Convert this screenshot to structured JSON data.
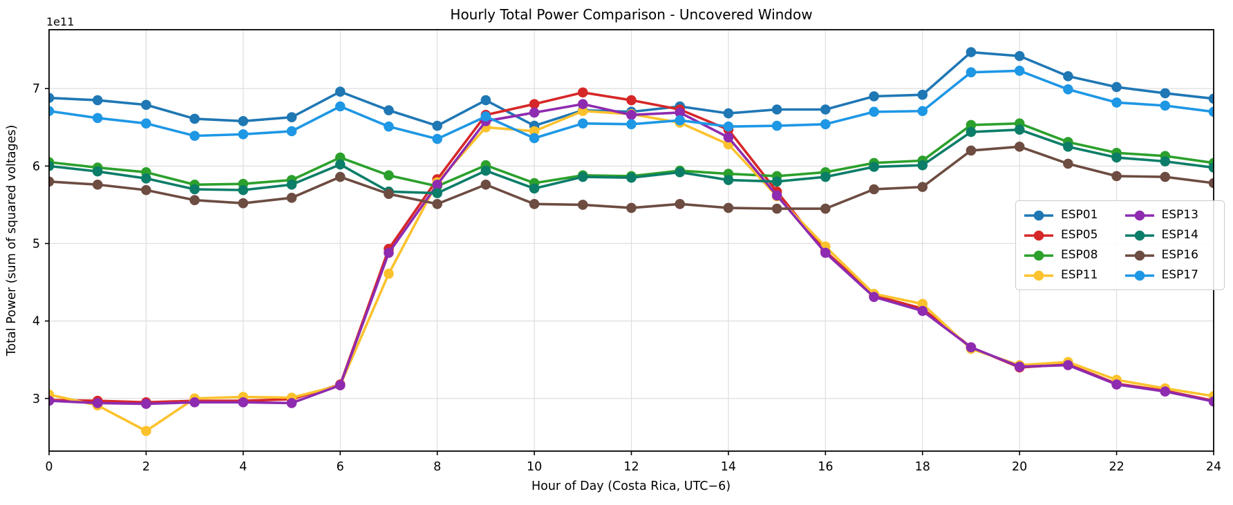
{
  "chart_data": {
    "type": "line",
    "title": "Hourly Total Power Comparison - Uncovered Window",
    "xlabel": "Hour of Day (Costa Rica, UTC−6)",
    "ylabel": "Total Power (sum of squared voltages)",
    "y_offset_label": "1e11",
    "y_unit_multiplier": "1e11",
    "x": [
      0,
      1,
      2,
      3,
      4,
      5,
      6,
      7,
      8,
      9,
      10,
      11,
      12,
      13,
      14,
      15,
      16,
      17,
      18,
      19,
      20,
      21,
      22,
      23,
      24
    ],
    "x_ticks": [
      0,
      2,
      4,
      6,
      8,
      10,
      12,
      14,
      16,
      18,
      20,
      22,
      24
    ],
    "y_ticks": [
      3,
      4,
      5,
      6,
      7
    ],
    "xlim": [
      0,
      24
    ],
    "ylim": [
      2.32,
      7.76
    ],
    "grid": true,
    "legend_position": "center right",
    "legend_columns": 2,
    "series": [
      {
        "name": "ESP01",
        "color": "#1f77b4",
        "values": [
          6.88,
          6.85,
          6.79,
          6.61,
          6.58,
          6.63,
          6.96,
          6.72,
          6.52,
          6.85,
          6.52,
          6.72,
          6.7,
          6.77,
          6.68,
          6.73,
          6.73,
          6.9,
          6.92,
          7.47,
          7.42,
          7.16,
          7.02,
          6.94,
          6.87
        ]
      },
      {
        "name": "ESP05",
        "color": "#d62728",
        "values": [
          2.98,
          2.97,
          2.95,
          2.97,
          2.97,
          2.99,
          3.18,
          4.93,
          5.83,
          6.66,
          6.8,
          6.95,
          6.85,
          6.73,
          6.47,
          5.67,
          4.9,
          4.33,
          4.16,
          3.66,
          3.4,
          3.44,
          3.19,
          3.1,
          2.97
        ]
      },
      {
        "name": "ESP08",
        "color": "#2ca02c",
        "values": [
          6.05,
          5.98,
          5.92,
          5.76,
          5.77,
          5.82,
          6.11,
          5.88,
          5.74,
          6.01,
          5.78,
          5.88,
          5.87,
          5.94,
          5.9,
          5.87,
          5.92,
          6.04,
          6.07,
          6.53,
          6.55,
          6.31,
          6.17,
          6.13,
          6.04
        ]
      },
      {
        "name": "ESP11",
        "color": "#fcc22d",
        "values": [
          3.05,
          2.91,
          2.58,
          3.0,
          3.02,
          3.01,
          3.17,
          4.61,
          5.79,
          6.5,
          6.45,
          6.71,
          6.67,
          6.56,
          6.28,
          5.61,
          4.96,
          4.35,
          4.22,
          3.64,
          3.43,
          3.47,
          3.24,
          3.13,
          3.03
        ]
      },
      {
        "name": "ESP13",
        "color": "#8e2bb0",
        "values": [
          2.97,
          2.94,
          2.93,
          2.95,
          2.95,
          2.94,
          3.17,
          4.88,
          5.76,
          6.58,
          6.69,
          6.8,
          6.66,
          6.69,
          6.37,
          5.62,
          4.88,
          4.31,
          4.13,
          3.66,
          3.41,
          3.43,
          3.18,
          3.09,
          2.96
        ]
      },
      {
        "name": "ESP14",
        "color": "#0b7d68",
        "values": [
          6.0,
          5.93,
          5.84,
          5.7,
          5.69,
          5.76,
          6.02,
          5.67,
          5.65,
          5.94,
          5.71,
          5.86,
          5.85,
          5.92,
          5.82,
          5.8,
          5.86,
          5.99,
          6.01,
          6.44,
          6.47,
          6.25,
          6.11,
          6.06,
          5.98
        ]
      },
      {
        "name": "ESP16",
        "color": "#6d4c41",
        "values": [
          5.8,
          5.76,
          5.69,
          5.56,
          5.52,
          5.59,
          5.86,
          5.64,
          5.51,
          5.76,
          5.51,
          5.5,
          5.46,
          5.51,
          5.46,
          5.45,
          5.45,
          5.7,
          5.73,
          6.2,
          6.25,
          6.03,
          5.87,
          5.86,
          5.78
        ]
      },
      {
        "name": "ESP17",
        "color": "#1e97e5",
        "values": [
          6.71,
          6.62,
          6.55,
          6.39,
          6.41,
          6.45,
          6.77,
          6.51,
          6.35,
          6.64,
          6.36,
          6.55,
          6.54,
          6.59,
          6.51,
          6.52,
          6.54,
          6.7,
          6.71,
          7.21,
          7.23,
          6.99,
          6.82,
          6.78,
          6.7
        ]
      }
    ],
    "styles": {
      "grid_color": "#dedede",
      "axis_color": "#000000",
      "text_color": "#000000",
      "legend_border_color": "#cbcbcb",
      "line_width": 3.6,
      "marker_radius": 7.3
    }
  }
}
